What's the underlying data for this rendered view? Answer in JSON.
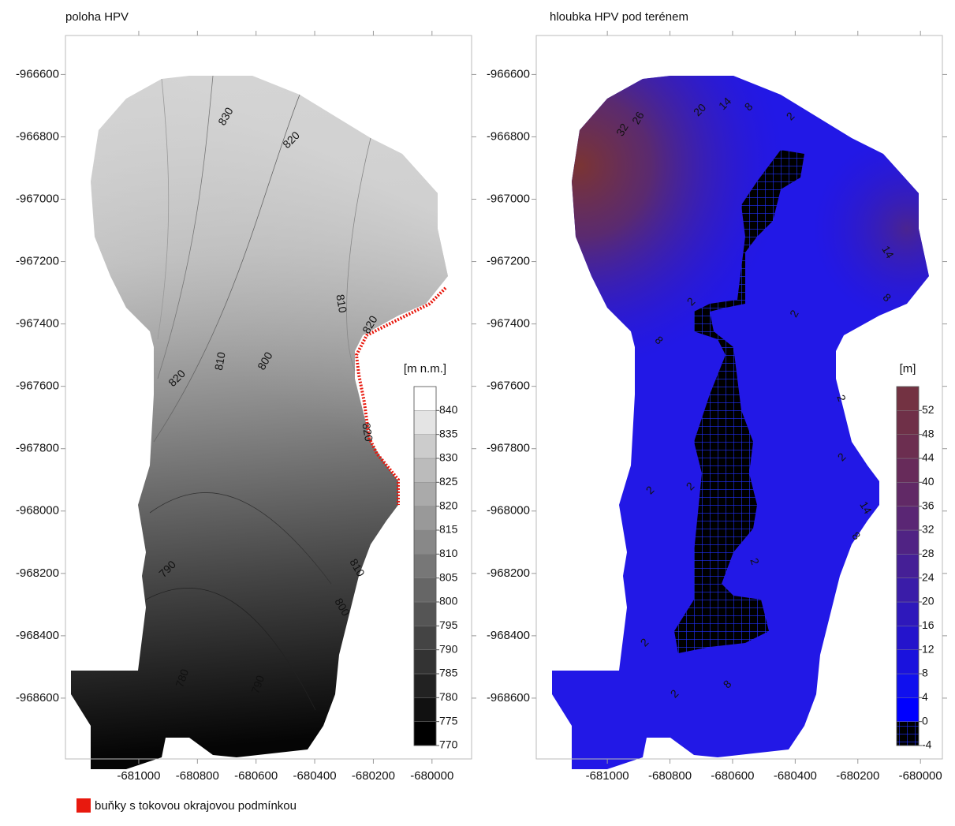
{
  "chart_data": [
    {
      "type": "contour",
      "title": "poloha HPV",
      "xlim": [
        -681250,
        -679865
      ],
      "xticks": [
        -681000,
        -680800,
        -680600,
        -680400,
        -680200,
        -680000
      ],
      "ylim": [
        -968795,
        -966475
      ],
      "yticks": [
        -968600,
        -968400,
        -968200,
        -968000,
        -967800,
        -967600,
        -967400,
        -967200,
        -967000,
        -966800,
        -966600
      ],
      "colorbar": {
        "label": "[m n.m.]",
        "lim": [
          770,
          845
        ],
        "ticks": [
          770,
          775,
          780,
          785,
          790,
          795,
          800,
          805,
          810,
          815,
          820,
          825,
          830,
          835,
          840
        ],
        "colors": [
          "#000000",
          "#111111",
          "#222222",
          "#333333",
          "#444444",
          "#555555",
          "#666666",
          "#777777",
          "#888888",
          "#999999",
          "#aaaaaa",
          "#bbbbbb",
          "#cccccc",
          "#e4e4e4",
          "#ffffff"
        ]
      },
      "contour_labels": [
        830,
        820,
        810,
        820,
        810,
        820,
        800,
        820,
        790,
        810,
        800,
        780,
        790
      ],
      "legend": {
        "label": "buňky s tokovou okrajovou podmínkou",
        "color": "#e8190e"
      }
    },
    {
      "type": "contour",
      "title": "hloubka HPV pod terénem",
      "xlim": [
        -681227,
        -679930
      ],
      "xticks": [
        -681000,
        -680800,
        -680600,
        -680400,
        -680200,
        -680000
      ],
      "ylim": [
        -968795,
        -966475
      ],
      "yticks": [
        -968600,
        -968400,
        -968200,
        -968000,
        -967800,
        -967600,
        -967400,
        -967200,
        -967000,
        -966800,
        -966600
      ],
      "colorbar": {
        "label": "[m]",
        "lim": [
          -4,
          56
        ],
        "ticks": [
          -4,
          0,
          4,
          8,
          12,
          16,
          20,
          24,
          28,
          32,
          36,
          40,
          44,
          48,
          52
        ],
        "colors": [
          "#000000",
          "#0000ff",
          "#1010ee",
          "#1a12dd",
          "#2414cc",
          "#2e18bb",
          "#3a1ca8",
          "#451f96",
          "#502384",
          "#5a2674",
          "#612966",
          "#672b5a",
          "#6c2e50",
          "#6f3048",
          "#733242"
        ]
      },
      "contour_labels": [
        32,
        26,
        20,
        14,
        8,
        2,
        14,
        8,
        2,
        2,
        8,
        2,
        2,
        2,
        2,
        14,
        8,
        2,
        2,
        8,
        2
      ]
    }
  ]
}
